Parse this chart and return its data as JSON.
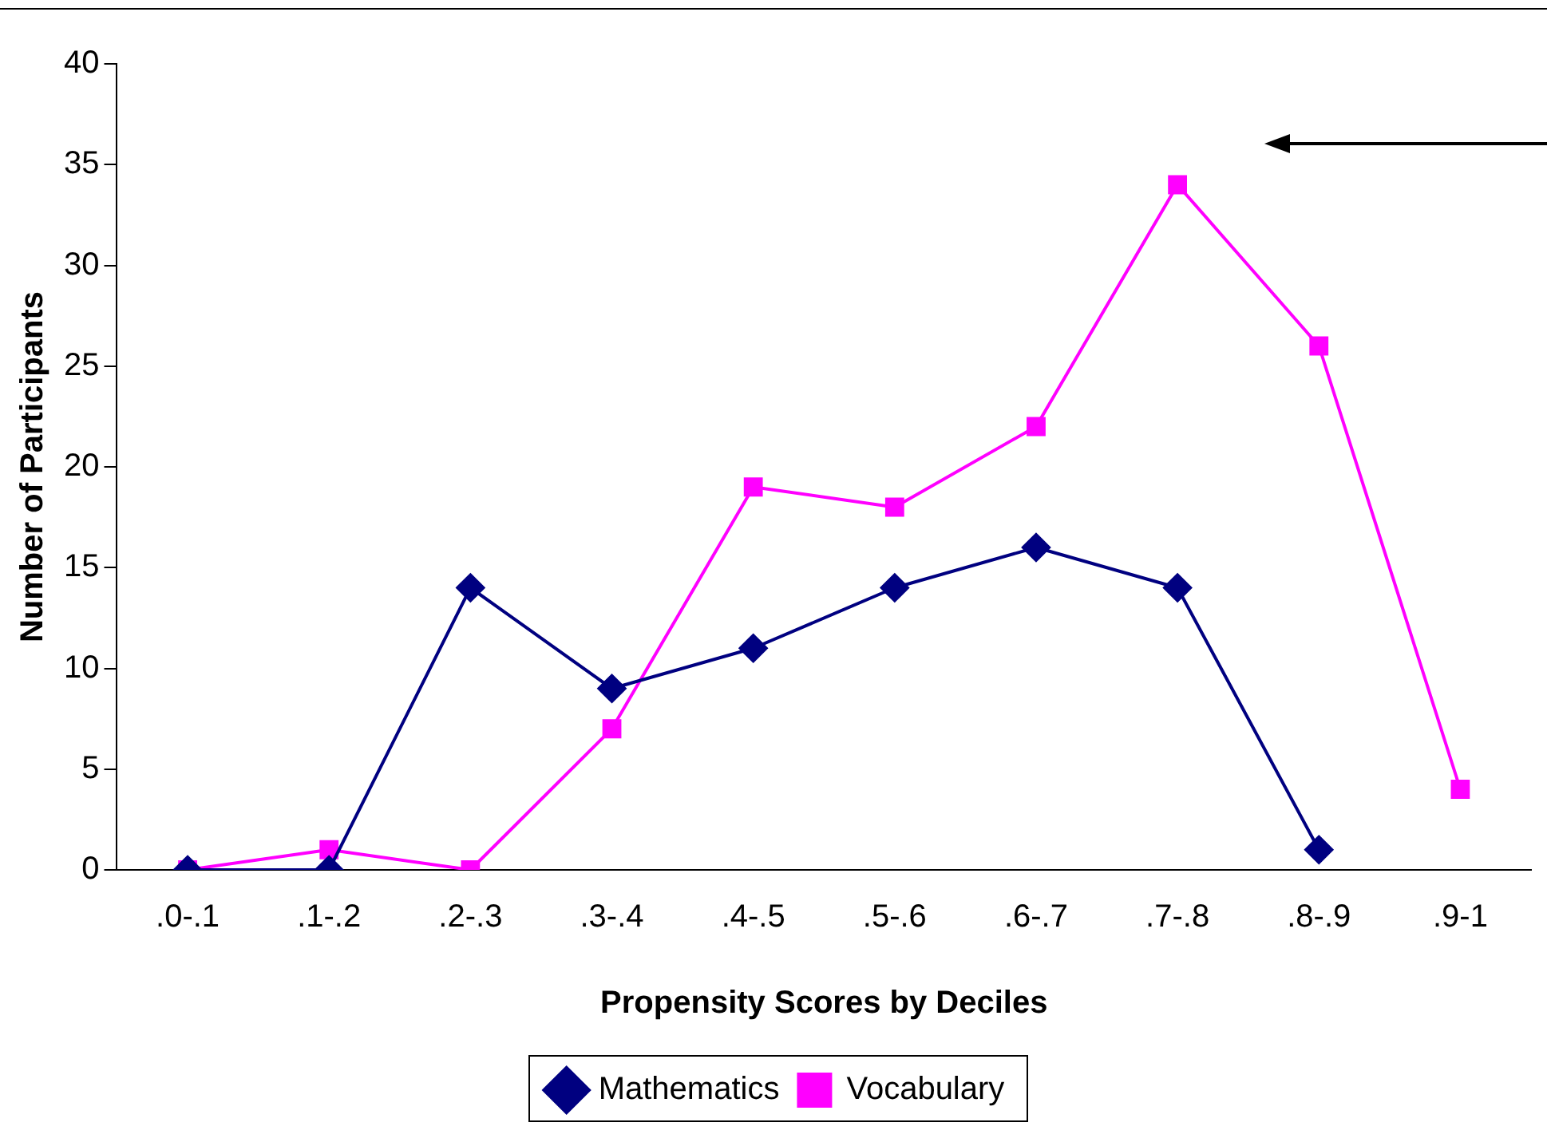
{
  "chart_data": {
    "type": "line",
    "xlabel": "Propensity Scores by Deciles",
    "ylabel": "Number of Participants",
    "categories": [
      ".0-.1",
      ".1-.2",
      ".2-.3",
      ".3-.4",
      ".4-.5",
      ".5-.6",
      ".6-.7",
      ".7-.8",
      ".8-.9",
      ".9-1"
    ],
    "series": [
      {
        "name": "Mathematics",
        "color": "#000080",
        "marker": "diamond",
        "values": [
          0,
          0,
          14,
          9,
          11,
          14,
          16,
          14,
          1,
          null
        ]
      },
      {
        "name": "Vocabulary",
        "color": "#ff00ff",
        "marker": "square",
        "values": [
          0,
          1,
          0,
          7,
          19,
          18,
          22,
          34,
          26,
          4
        ]
      }
    ],
    "ylim": [
      0,
      40
    ],
    "yticks": [
      0,
      5,
      10,
      15,
      20,
      25,
      30,
      35,
      40
    ],
    "grid": false,
    "legend": "bottom",
    "line_style": "solid"
  }
}
